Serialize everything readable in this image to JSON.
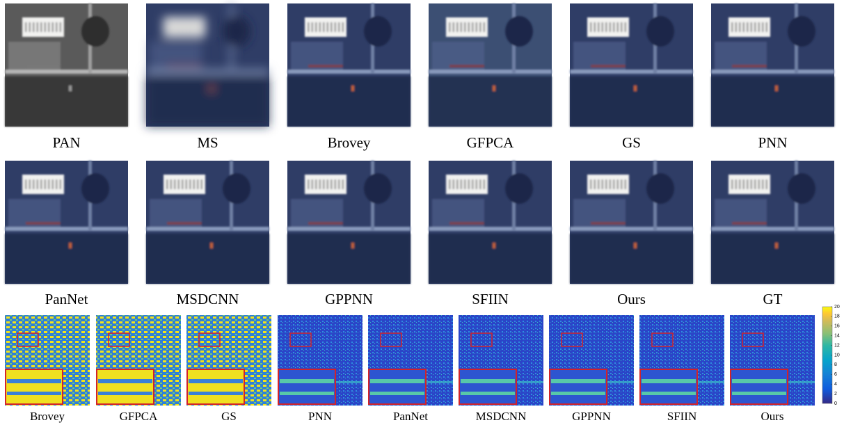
{
  "rows": [
    {
      "labels": [
        "PAN",
        "MS",
        "Brovey",
        "GFPCA",
        "GS",
        "PNN"
      ]
    },
    {
      "labels": [
        "PanNet",
        "MSDCNN",
        "GPPNN",
        "SFIIN",
        "Ours",
        "GT"
      ]
    }
  ],
  "error_maps": {
    "labels": [
      "Brovey",
      "GFPCA",
      "GS",
      "PNN",
      "PanNet",
      "MSDCNN",
      "GPPNN",
      "SFIIN",
      "Ours"
    ]
  },
  "colorbar": {
    "ticks": [
      0,
      2,
      4,
      6,
      8,
      10,
      12,
      14,
      16,
      18,
      20
    ]
  }
}
